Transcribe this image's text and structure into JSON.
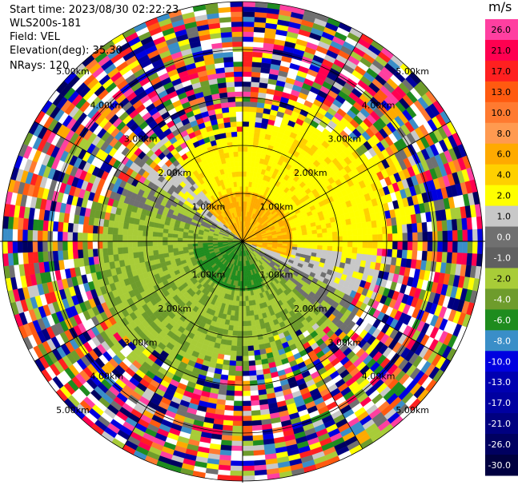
{
  "header": {
    "start_time": "Start time: 2023/08/30 02:22:23",
    "station": "WLS200s-181",
    "field": "Field: VEL",
    "elevation": "Elevation(deg): 35.30",
    "nrays": "NRays: 120"
  },
  "colorbar": {
    "unit": "m/s",
    "labels": [
      "26.0",
      "21.0",
      "17.0",
      "13.0",
      "10.0",
      "8.0",
      "6.0",
      "4.0",
      "2.0",
      "1.0",
      "0.0",
      "-1.0",
      "-2.0",
      "-4.0",
      "-6.0",
      "-8.0",
      "-10.0",
      "-13.0",
      "-17.0",
      "-21.0",
      "-26.0",
      "-30.0"
    ],
    "colors": [
      "#ff3fa0",
      "#ff0050",
      "#ff2020",
      "#ff5a10",
      "#ff7a30",
      "#ff9a50",
      "#ffaa00",
      "#ffd000",
      "#ffff00",
      "#c8c8c8",
      "#707070",
      "#606060",
      "#a8cc38",
      "#6e9c2c",
      "#1e8c1e",
      "#3a8ec8",
      "#0000e0",
      "#0000b0",
      "#0000a0",
      "#000080",
      "#000060",
      "#000040"
    ]
  },
  "chart_data": {
    "type": "heatmap",
    "projection": "polar PPI",
    "field": "VEL",
    "units": "m/s",
    "elevation_deg": 35.3,
    "nrays": 120,
    "range_rings_km": [
      1.0,
      2.0,
      3.0,
      4.0,
      5.0
    ],
    "ring_labels": [
      "1.00km",
      "2.00km",
      "3.00km",
      "4.00km",
      "5.00km"
    ],
    "max_range_km": 5.0,
    "color_scale_min": -30.0,
    "color_scale_max": 26.0,
    "pattern": "near-range wind: positive (yellow/orange) velocities to the north and north-east, negative (green) velocities to the south and south-west, noisy multicolor returns beyond ~3 km"
  }
}
